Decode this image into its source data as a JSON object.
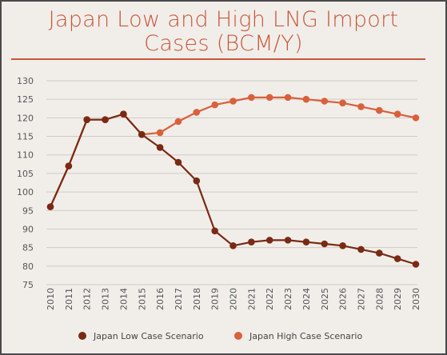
{
  "chart_data": {
    "type": "line",
    "title": "Japan Low and High LNG Import\nCases (BCM/Y)",
    "xlabel": "",
    "ylabel": "",
    "x": [
      "2010",
      "2011",
      "2012",
      "2013",
      "2014",
      "2015",
      "2016",
      "2017",
      "2018",
      "2019",
      "2020",
      "2021",
      "2022",
      "2023",
      "2024",
      "2025",
      "2026",
      "2027",
      "2028",
      "2029",
      "2030"
    ],
    "ylim": [
      75,
      130
    ],
    "yticks": [
      75,
      80,
      85,
      90,
      95,
      100,
      105,
      110,
      115,
      120,
      125,
      130
    ],
    "grid": "horizontal",
    "legend_position": "bottom",
    "series": [
      {
        "name": "Japan Low Case Scenario",
        "color": "#7a2a14",
        "values": [
          96,
          107,
          119.5,
          119.5,
          121,
          115.5,
          112,
          108,
          103,
          89.5,
          85.5,
          86.5,
          87,
          87,
          86.5,
          86,
          85.5,
          84.5,
          83.5,
          82,
          80.5
        ]
      },
      {
        "name": "Japan High Case Scenario",
        "color": "#d9603b",
        "values": [
          96,
          107,
          119.5,
          119.5,
          121,
          115.5,
          116,
          119,
          121.5,
          123.5,
          124.5,
          125.5,
          125.5,
          125.5,
          125,
          124.5,
          124,
          123,
          122,
          121,
          120
        ]
      }
    ]
  }
}
